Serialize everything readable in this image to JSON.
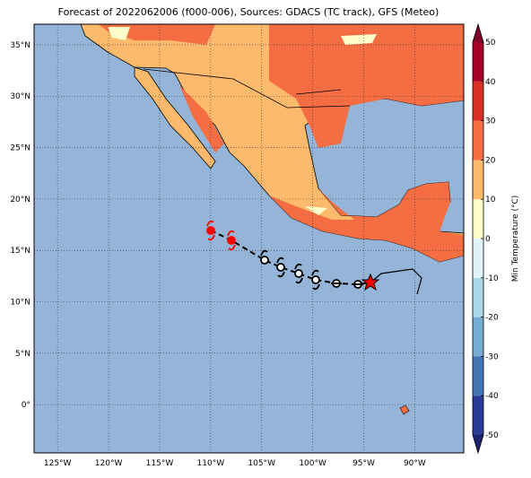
{
  "title": "Forecast of 2022062006 (f000-006), Sources: GDACS (TC track), GFS (Meteo)",
  "map": {
    "lonlim": [
      -127.3,
      -85.2
    ],
    "latlim": [
      -4.7,
      37.0
    ],
    "lon_ticks": [
      {
        "value": -125,
        "label": "125°W"
      },
      {
        "value": -120,
        "label": "120°W"
      },
      {
        "value": -115,
        "label": "115°W"
      },
      {
        "value": -110,
        "label": "110°W"
      },
      {
        "value": -105,
        "label": "105°W"
      },
      {
        "value": -100,
        "label": "100°W"
      },
      {
        "value": -95,
        "label": "95°W"
      },
      {
        "value": -90,
        "label": "90°W"
      }
    ],
    "lat_ticks": [
      {
        "value": 0,
        "label": "0°"
      },
      {
        "value": 5,
        "label": "5°N"
      },
      {
        "value": 10,
        "label": "10°N"
      },
      {
        "value": 15,
        "label": "15°N"
      },
      {
        "value": 20,
        "label": "20°N"
      },
      {
        "value": 25,
        "label": "25°N"
      },
      {
        "value": 30,
        "label": "30°N"
      },
      {
        "value": 35,
        "label": "35°N"
      }
    ],
    "grid": true
  },
  "colorbar": {
    "label": "Min Temperature (°C)",
    "lim": [
      -50,
      50
    ],
    "ticks": [
      -50,
      -40,
      -30,
      -20,
      -10,
      0,
      10,
      20,
      30,
      40,
      50
    ],
    "colors": [
      "#2b3a94",
      "#4575b4",
      "#74add1",
      "#abd9e9",
      "#e0f3f8",
      "#ffffcc",
      "#fdba6c",
      "#f46d43",
      "#d73027",
      "#a50026"
    ],
    "under_color": "#1f2470",
    "over_color": "#7f0026"
  }
}
